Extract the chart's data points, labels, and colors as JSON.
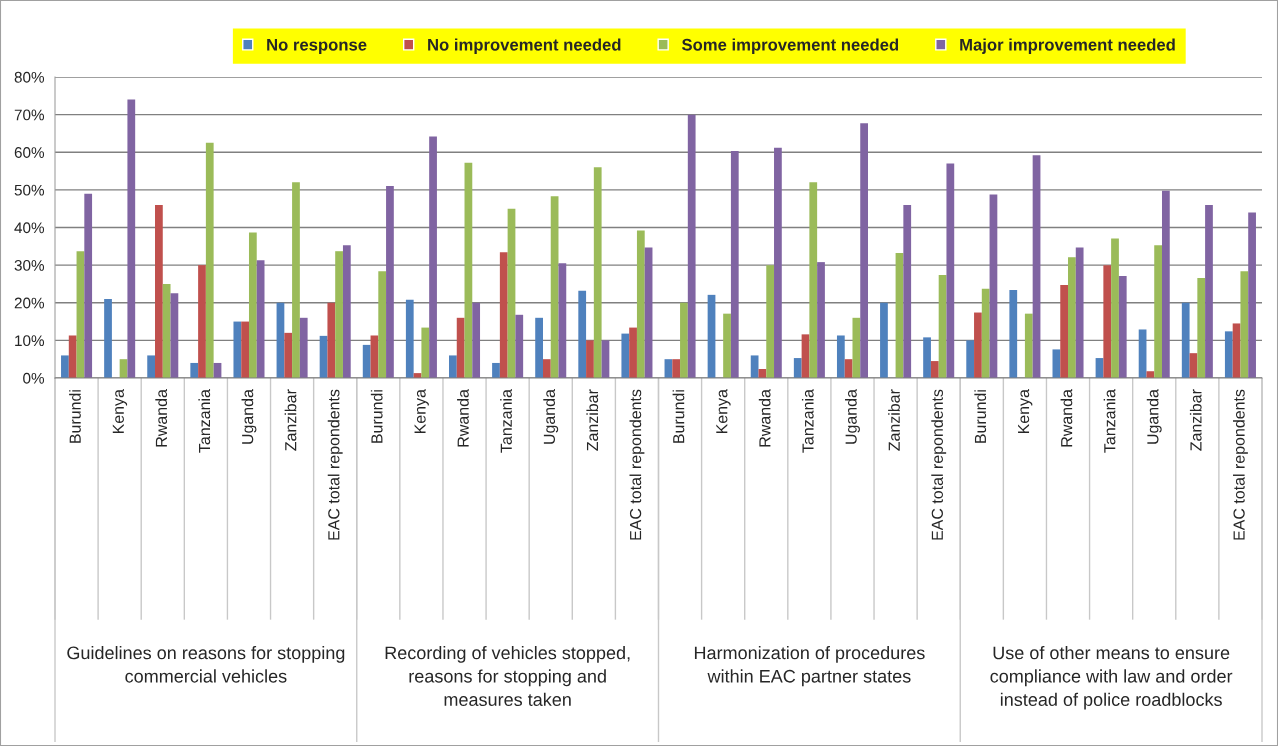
{
  "chart_data": {
    "type": "bar",
    "categories": [
      "Burundi",
      "Kenya",
      "Rwanda",
      "Tanzania",
      "Uganda",
      "Zanzibar",
      "EAC total repondents",
      "Burundi",
      "Kenya",
      "Rwanda",
      "Tanzania",
      "Uganda",
      "Zanzibar",
      "EAC total repondents",
      "Burundi",
      "Kenya",
      "Rwanda",
      "Tanzania",
      "Uganda",
      "Zanzibar",
      "EAC total repondents",
      "Burundi",
      "Kenya",
      "Rwanda",
      "Tanzania",
      "Uganda",
      "Zanzibar",
      "EAC total repondents"
    ],
    "series": [
      {
        "name": "No response",
        "color": "#4f81bd",
        "values": [
          6,
          21,
          6,
          4,
          15,
          20,
          11.2,
          8.8,
          20.8,
          6,
          4,
          16,
          23.2,
          11.8,
          5,
          22.1,
          6,
          5.3,
          11.3,
          20,
          10.8,
          10,
          23.4,
          7.6,
          5.3,
          12.9,
          20,
          12.4
        ]
      },
      {
        "name": "No improvement needed",
        "color": "#c0504d",
        "values": [
          11.3,
          0,
          46,
          30,
          15,
          12,
          20,
          11.3,
          1.3,
          16,
          33.4,
          5,
          10,
          13.4,
          5,
          0,
          2.4,
          11.6,
          5,
          0,
          4.5,
          17.4,
          0,
          24.7,
          30,
          1.8,
          6.6,
          14.5
        ]
      },
      {
        "name": "Some improvement needed",
        "color": "#9bbb59",
        "values": [
          33.7,
          5,
          25,
          62.5,
          38.7,
          52,
          33.7,
          28.4,
          13.4,
          57.2,
          45,
          48.3,
          56,
          39.2,
          20,
          17.1,
          30,
          52,
          16,
          33.2,
          27.4,
          23.7,
          17.1,
          32.1,
          37.1,
          35.3,
          26.6,
          28.4
        ]
      },
      {
        "name": "Major improvement needed",
        "color": "#8064a2",
        "values": [
          49,
          74,
          22.5,
          4,
          31.3,
          16,
          35.3,
          51,
          64.2,
          20,
          16.8,
          30.5,
          10,
          34.7,
          70,
          60.3,
          61.2,
          30.8,
          67.7,
          46,
          57,
          48.8,
          59.2,
          34.7,
          27.1,
          49.8,
          46,
          44
        ]
      }
    ],
    "ylim": [
      0,
      80
    ],
    "yticks": [
      {
        "value": 0,
        "label": "0%"
      },
      {
        "value": 10,
        "label": "10%"
      },
      {
        "value": 20,
        "label": "20%"
      },
      {
        "value": 30,
        "label": "30%"
      },
      {
        "value": 40,
        "label": "40%"
      },
      {
        "value": 50,
        "label": "50%"
      },
      {
        "value": 60,
        "label": "60%"
      },
      {
        "value": 70,
        "label": "70%"
      },
      {
        "value": 80,
        "label": "80%"
      }
    ],
    "grid": "y",
    "legend": "top",
    "annotations": [
      "Guidelines on reasons for stopping commercial vehicles",
      "Recording of vehicles stopped, reasons for stopping and measures taken",
      "Harmonization of procedures within EAC partner states",
      "Use of other means to ensure compliance with law and order instead of police roadblocks"
    ]
  }
}
